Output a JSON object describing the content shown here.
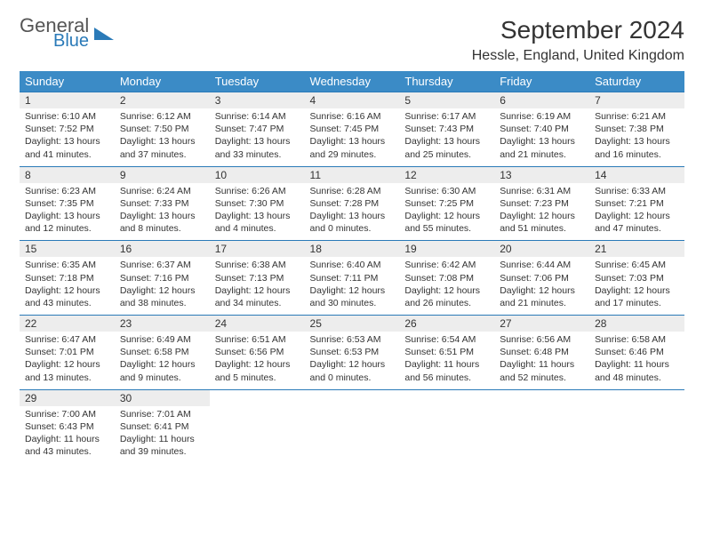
{
  "logo": {
    "line1": "General",
    "line2": "Blue"
  },
  "title": "September 2024",
  "location": "Hessle, England, United Kingdom",
  "colors": {
    "header_bg": "#3b8bc6",
    "header_text": "#ffffff",
    "num_bg": "#ededed",
    "border": "#2a7ab8",
    "body_text": "#333333",
    "logo_gray": "#555555",
    "logo_blue": "#2a7ab8"
  },
  "weekdays": [
    "Sunday",
    "Monday",
    "Tuesday",
    "Wednesday",
    "Thursday",
    "Friday",
    "Saturday"
  ],
  "weeks": [
    [
      {
        "n": "1",
        "sr": "6:10 AM",
        "ss": "7:52 PM",
        "dl": "13 hours and 41 minutes."
      },
      {
        "n": "2",
        "sr": "6:12 AM",
        "ss": "7:50 PM",
        "dl": "13 hours and 37 minutes."
      },
      {
        "n": "3",
        "sr": "6:14 AM",
        "ss": "7:47 PM",
        "dl": "13 hours and 33 minutes."
      },
      {
        "n": "4",
        "sr": "6:16 AM",
        "ss": "7:45 PM",
        "dl": "13 hours and 29 minutes."
      },
      {
        "n": "5",
        "sr": "6:17 AM",
        "ss": "7:43 PM",
        "dl": "13 hours and 25 minutes."
      },
      {
        "n": "6",
        "sr": "6:19 AM",
        "ss": "7:40 PM",
        "dl": "13 hours and 21 minutes."
      },
      {
        "n": "7",
        "sr": "6:21 AM",
        "ss": "7:38 PM",
        "dl": "13 hours and 16 minutes."
      }
    ],
    [
      {
        "n": "8",
        "sr": "6:23 AM",
        "ss": "7:35 PM",
        "dl": "13 hours and 12 minutes."
      },
      {
        "n": "9",
        "sr": "6:24 AM",
        "ss": "7:33 PM",
        "dl": "13 hours and 8 minutes."
      },
      {
        "n": "10",
        "sr": "6:26 AM",
        "ss": "7:30 PM",
        "dl": "13 hours and 4 minutes."
      },
      {
        "n": "11",
        "sr": "6:28 AM",
        "ss": "7:28 PM",
        "dl": "13 hours and 0 minutes."
      },
      {
        "n": "12",
        "sr": "6:30 AM",
        "ss": "7:25 PM",
        "dl": "12 hours and 55 minutes."
      },
      {
        "n": "13",
        "sr": "6:31 AM",
        "ss": "7:23 PM",
        "dl": "12 hours and 51 minutes."
      },
      {
        "n": "14",
        "sr": "6:33 AM",
        "ss": "7:21 PM",
        "dl": "12 hours and 47 minutes."
      }
    ],
    [
      {
        "n": "15",
        "sr": "6:35 AM",
        "ss": "7:18 PM",
        "dl": "12 hours and 43 minutes."
      },
      {
        "n": "16",
        "sr": "6:37 AM",
        "ss": "7:16 PM",
        "dl": "12 hours and 38 minutes."
      },
      {
        "n": "17",
        "sr": "6:38 AM",
        "ss": "7:13 PM",
        "dl": "12 hours and 34 minutes."
      },
      {
        "n": "18",
        "sr": "6:40 AM",
        "ss": "7:11 PM",
        "dl": "12 hours and 30 minutes."
      },
      {
        "n": "19",
        "sr": "6:42 AM",
        "ss": "7:08 PM",
        "dl": "12 hours and 26 minutes."
      },
      {
        "n": "20",
        "sr": "6:44 AM",
        "ss": "7:06 PM",
        "dl": "12 hours and 21 minutes."
      },
      {
        "n": "21",
        "sr": "6:45 AM",
        "ss": "7:03 PM",
        "dl": "12 hours and 17 minutes."
      }
    ],
    [
      {
        "n": "22",
        "sr": "6:47 AM",
        "ss": "7:01 PM",
        "dl": "12 hours and 13 minutes."
      },
      {
        "n": "23",
        "sr": "6:49 AM",
        "ss": "6:58 PM",
        "dl": "12 hours and 9 minutes."
      },
      {
        "n": "24",
        "sr": "6:51 AM",
        "ss": "6:56 PM",
        "dl": "12 hours and 5 minutes."
      },
      {
        "n": "25",
        "sr": "6:53 AM",
        "ss": "6:53 PM",
        "dl": "12 hours and 0 minutes."
      },
      {
        "n": "26",
        "sr": "6:54 AM",
        "ss": "6:51 PM",
        "dl": "11 hours and 56 minutes."
      },
      {
        "n": "27",
        "sr": "6:56 AM",
        "ss": "6:48 PM",
        "dl": "11 hours and 52 minutes."
      },
      {
        "n": "28",
        "sr": "6:58 AM",
        "ss": "6:46 PM",
        "dl": "11 hours and 48 minutes."
      }
    ],
    [
      {
        "n": "29",
        "sr": "7:00 AM",
        "ss": "6:43 PM",
        "dl": "11 hours and 43 minutes."
      },
      {
        "n": "30",
        "sr": "7:01 AM",
        "ss": "6:41 PM",
        "dl": "11 hours and 39 minutes."
      },
      null,
      null,
      null,
      null,
      null
    ]
  ],
  "labels": {
    "sunrise": "Sunrise:",
    "sunset": "Sunset:",
    "daylight": "Daylight:"
  }
}
